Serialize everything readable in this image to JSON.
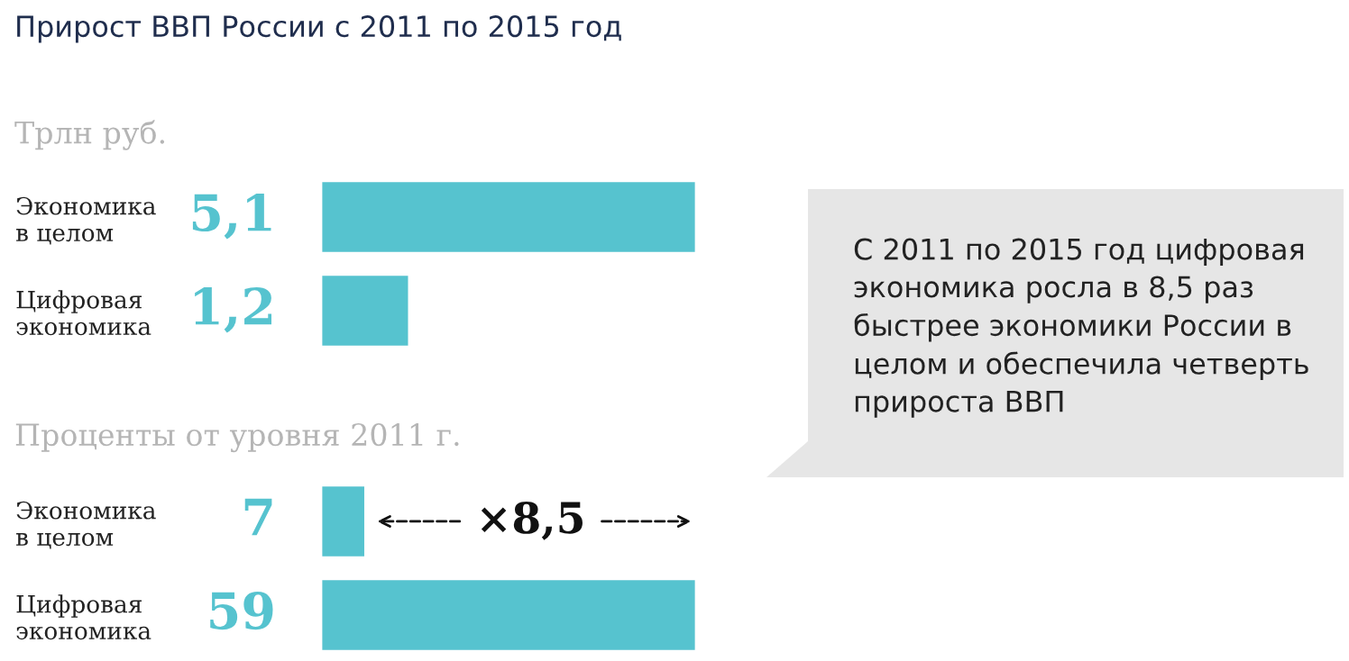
{
  "chart_data": [
    {
      "type": "bar",
      "orientation": "horizontal",
      "title": "Прирост ВВП России с 2011 по 2015 год",
      "subtitle": "Трлн руб.",
      "categories": [
        "Экономика\nв целом",
        "Цифровая\nэкономика"
      ],
      "values": [
        5.1,
        1.2
      ],
      "value_labels": [
        "5,1",
        "1,2"
      ],
      "color": "#56c3cf"
    },
    {
      "type": "bar",
      "orientation": "horizontal",
      "subtitle": "Проценты от уровня 2011 г.",
      "categories": [
        "Экономика\nв целом",
        "Цифровая\nэкономика"
      ],
      "values": [
        7,
        59
      ],
      "value_labels": [
        "7",
        "59"
      ],
      "color": "#56c3cf",
      "annotations": [
        "×8,5"
      ]
    },
    {
      "type": "other",
      "annotations": [
        "С 2011 по 2015 год цифровая\nэкономика росла в 8,5 раз\nбыстрее экономики России в\nцелом и обеспечила четверть\nприроста ВВП"
      ]
    }
  ]
}
